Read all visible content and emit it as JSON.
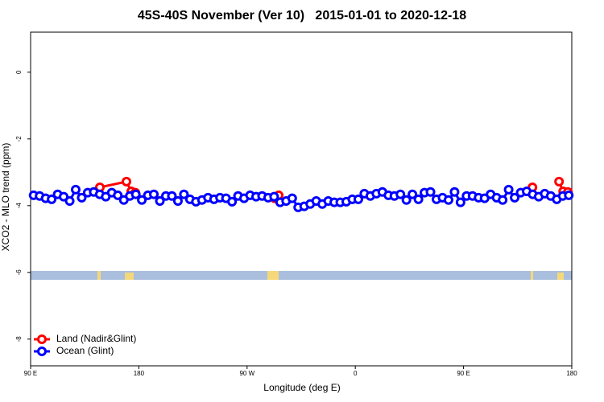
{
  "chart_data": {
    "type": "line",
    "title": "45S-40S November (Ver 10)   2015-01-01 to 2020-12-18",
    "x_label": "Longitude (deg E)",
    "y_label": "XCO2 - MLO trend (ppm)",
    "xlim": [
      90,
      540
    ],
    "xticks": [
      {
        "value": 90,
        "label": "90 E"
      },
      180,
      {
        "value": 270,
        "label": "90 W"
      },
      {
        "value": 360,
        "label": "0"
      },
      {
        "value": 450,
        "label": "90 E"
      },
      {
        "value": 540,
        "label": "180"
      }
    ],
    "ylim": [
      -8.8,
      1.2
    ],
    "yticks": [
      0,
      -2,
      -4,
      -6,
      -8
    ],
    "legend": "bottomleft",
    "series": [
      {
        "name": "Land (Nadir&Glint)",
        "color": "#ff0000",
        "x": [
          147.6,
          169.7,
          173.7,
          177.1,
          230,
          292.9,
          296.3,
          400,
          507.3,
          520,
          529.4,
          532.8,
          536.8
        ],
        "values": [
          -3.45,
          -3.28,
          -3.57,
          -3.61,
          null,
          -3.78,
          -3.69,
          null,
          -3.45,
          null,
          -3.28,
          -3.57,
          -3.59
        ]
      },
      {
        "name": "Ocean (Glint)",
        "color": "#0000ff",
        "x": [
          92.5,
          97.5,
          102.5,
          107.5,
          112.5,
          117.5,
          122.5,
          127.5,
          132.5,
          137.5,
          142.5,
          147.5,
          152.5,
          157.5,
          162.5,
          167.5,
          172.5,
          177.5,
          182.5,
          187.5,
          192.5,
          197.5,
          202.5,
          207.5,
          212.5,
          217.5,
          222.5,
          227.5,
          232.5,
          237.5,
          242.5,
          247.5,
          252.5,
          257.5,
          262.5,
          267.5,
          272.5,
          277.5,
          282.5,
          287.5,
          292.5,
          297.5,
          302.5,
          307.5,
          312.5,
          317.5,
          322.5,
          327.5,
          332.5,
          337.5,
          342.5,
          347.5,
          352.5,
          357.5,
          362.5,
          367.5,
          372.5,
          377.5,
          382.5,
          387.5,
          392.5,
          397.5,
          402.5,
          407.5,
          412.5,
          417.5,
          422.5,
          427.5,
          432.5,
          437.5,
          442.5,
          447.5,
          452.5,
          457.5,
          462.5,
          467.5,
          472.5,
          477.5,
          482.5,
          487.5,
          492.5,
          497.5,
          502.5,
          507.5,
          512.5,
          517.5,
          522.5,
          527.5,
          532.5,
          537.5
        ],
        "values": [
          -3.69,
          -3.71,
          -3.78,
          -3.81,
          -3.66,
          -3.73,
          -3.86,
          -3.52,
          -3.76,
          -3.61,
          -3.59,
          -3.66,
          -3.73,
          -3.61,
          -3.69,
          -3.83,
          -3.71,
          -3.66,
          -3.83,
          -3.69,
          -3.66,
          -3.86,
          -3.71,
          -3.71,
          -3.86,
          -3.66,
          -3.81,
          -3.88,
          -3.83,
          -3.76,
          -3.81,
          -3.76,
          -3.78,
          -3.88,
          -3.71,
          -3.78,
          -3.69,
          -3.73,
          -3.71,
          -3.76,
          -3.73,
          -3.9,
          -3.86,
          -3.78,
          -4.05,
          -4.02,
          -3.95,
          -3.86,
          -3.95,
          -3.86,
          -3.9,
          -3.9,
          -3.88,
          -3.81,
          -3.81,
          -3.64,
          -3.71,
          -3.64,
          -3.59,
          -3.69,
          -3.71,
          -3.66,
          -3.83,
          -3.66,
          -3.81,
          -3.61,
          -3.59,
          -3.81,
          -3.76,
          -3.83,
          -3.59,
          -3.9,
          -3.71,
          -3.71,
          -3.76,
          -3.78,
          -3.66,
          -3.76,
          -3.83,
          -3.52,
          -3.76,
          -3.61,
          -3.57,
          -3.66,
          -3.73,
          -3.64,
          -3.71,
          -3.81,
          -3.71,
          -3.69
        ]
      }
    ]
  }
}
